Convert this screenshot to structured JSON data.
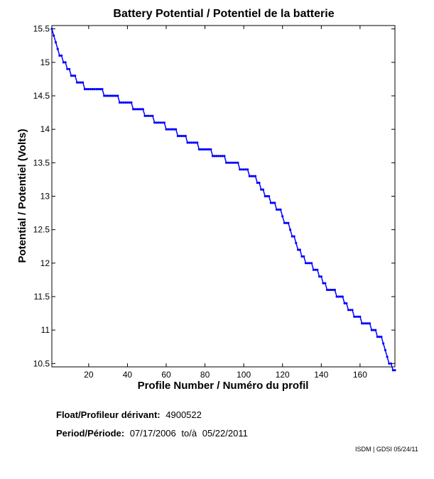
{
  "chart_data": {
    "type": "line",
    "title": "Battery Potential / Potentiel de la batterie",
    "xlabel": "Profile Number / Numéro du profil",
    "ylabel": "Potential / Potentiel (Volts)",
    "xlim": [
      1,
      178
    ],
    "ylim": [
      10.45,
      15.55
    ],
    "xticks": [
      20,
      40,
      60,
      80,
      100,
      120,
      140,
      160
    ],
    "yticks": [
      10.5,
      11,
      11.5,
      12,
      12.5,
      13,
      13.5,
      14,
      14.5,
      15,
      15.5
    ],
    "grid": false,
    "line_color": "#0000ff",
    "series": [
      {
        "x": [
          1,
          2,
          3,
          4,
          5,
          7,
          9,
          12,
          15,
          19,
          23,
          31,
          39,
          45,
          51,
          56,
          62,
          68,
          73,
          79,
          87,
          94,
          101,
          104,
          108,
          111,
          115,
          118,
          120,
          124,
          127,
          130,
          133,
          137,
          141,
          145,
          150,
          154,
          158,
          163,
          167,
          170,
          172,
          174,
          177,
          178
        ],
        "y": [
          15.5,
          15.4,
          15.3,
          15.2,
          15.1,
          15.0,
          14.9,
          14.8,
          14.7,
          14.6,
          14.6,
          14.5,
          14.4,
          14.3,
          14.2,
          14.1,
          14.0,
          13.9,
          13.8,
          13.7,
          13.6,
          13.5,
          13.4,
          13.3,
          13.2,
          13.0,
          12.9,
          12.8,
          12.7,
          12.5,
          12.3,
          12.1,
          12.0,
          11.9,
          11.7,
          11.6,
          11.5,
          11.3,
          11.2,
          11.1,
          11.0,
          10.9,
          10.8,
          10.6,
          10.4,
          10.4
        ]
      }
    ]
  },
  "info": {
    "float_label": "Float/Profileur dérivant:",
    "float_value": "4900522",
    "period_label": "Period/Période:",
    "period_start": "07/17/2006",
    "period_sep": "to/à",
    "period_end": "05/22/2011"
  },
  "credit": "ISDM | GDSI 05/24/11"
}
